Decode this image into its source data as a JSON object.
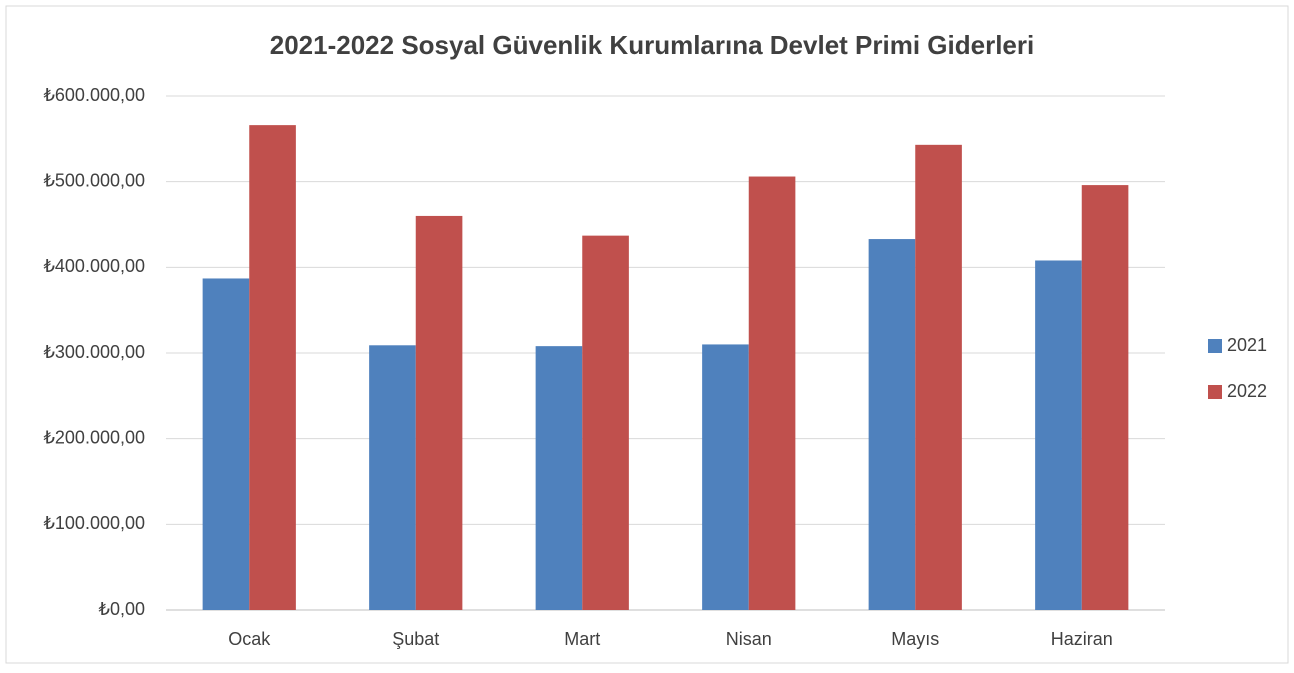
{
  "chart_data": {
    "type": "bar",
    "title": "2021-2022 Sosyal Güvenlik Kurumlarına Devlet Primi Giderleri",
    "categories": [
      "Ocak",
      "Şubat",
      "Mart",
      "Nisan",
      "Mayıs",
      "Haziran"
    ],
    "series": [
      {
        "name": "2021",
        "color": "#4f81bd",
        "values": [
          387000,
          309000,
          308000,
          310000,
          433000,
          408000
        ]
      },
      {
        "name": "2022",
        "color": "#c0504d",
        "values": [
          566000,
          460000,
          437000,
          506000,
          543000,
          496000
        ]
      }
    ],
    "ylim": [
      0,
      600000
    ],
    "yticks": [
      {
        "value": 0,
        "label": "₺0,00"
      },
      {
        "value": 100000,
        "label": "₺100.000,00"
      },
      {
        "value": 200000,
        "label": "₺200.000,00"
      },
      {
        "value": 300000,
        "label": "₺300.000,00"
      },
      {
        "value": 400000,
        "label": "₺400.000,00"
      },
      {
        "value": 500000,
        "label": "₺500.000,00"
      },
      {
        "value": 600000,
        "label": "₺600.000,00"
      }
    ],
    "grid": true,
    "legend": "right"
  }
}
